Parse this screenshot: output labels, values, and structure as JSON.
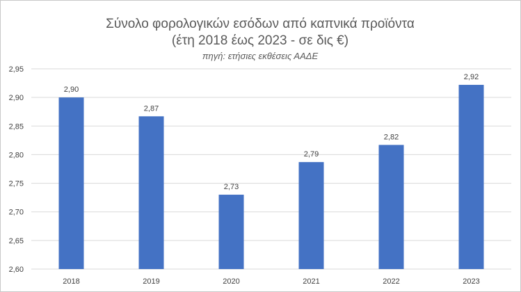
{
  "chart_data": {
    "type": "bar",
    "title_lines": [
      "Σύνολο φορολογικών εσόδων από καπνικά προϊόντα",
      "(έτη 2018 έως 2023 - σε δις €)"
    ],
    "subtitle": "πηγή: ετήσιες  εκθέσεις ΑΑΔΕ",
    "categories": [
      "2018",
      "2019",
      "2020",
      "2021",
      "2022",
      "2023"
    ],
    "values": [
      2.9,
      2.867,
      2.73,
      2.787,
      2.817,
      2.922
    ],
    "data_labels": [
      "2,90",
      "2,87",
      "2,73",
      "2,79",
      "2,82",
      "2,92"
    ],
    "y_ticks": [
      "2,60",
      "2,65",
      "2,70",
      "2,75",
      "2,80",
      "2,85",
      "2,90",
      "2,95"
    ],
    "ylim": [
      2.6,
      2.95
    ],
    "ystep": 0.05,
    "grid": true,
    "legend": "none",
    "bar_color": "#4472C4"
  }
}
